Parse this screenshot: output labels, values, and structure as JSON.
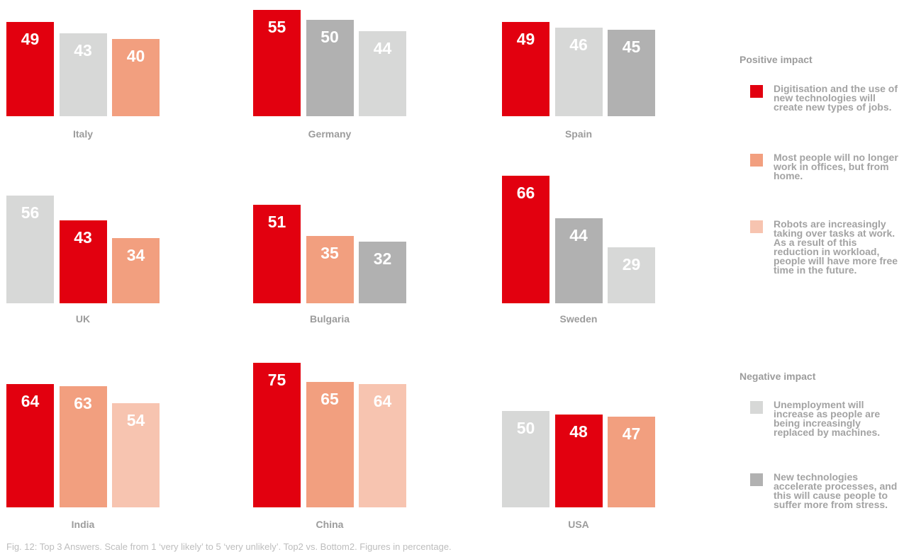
{
  "chart_data": {
    "type": "bar",
    "panels": [
      {
        "title": "Italy",
        "bars": [
          {
            "value": 49,
            "color": "#e2000f"
          },
          {
            "value": 43,
            "color": "#d7d8d7"
          },
          {
            "value": 40,
            "color": "#f29f7f"
          }
        ]
      },
      {
        "title": "Germany",
        "bars": [
          {
            "value": 55,
            "color": "#e2000f"
          },
          {
            "value": 50,
            "color": "#b1b1b1"
          },
          {
            "value": 44,
            "color": "#d7d8d7"
          }
        ]
      },
      {
        "title": "Spain",
        "bars": [
          {
            "value": 49,
            "color": "#e2000f"
          },
          {
            "value": 46,
            "color": "#d7d8d7"
          },
          {
            "value": 45,
            "color": "#b1b1b1"
          }
        ]
      },
      {
        "title": "UK",
        "bars": [
          {
            "value": 56,
            "color": "#d7d8d7"
          },
          {
            "value": 43,
            "color": "#e2000f"
          },
          {
            "value": 34,
            "color": "#f29f7f"
          }
        ]
      },
      {
        "title": "Bulgaria",
        "bars": [
          {
            "value": 51,
            "color": "#e2000f"
          },
          {
            "value": 35,
            "color": "#f29f7f"
          },
          {
            "value": 32,
            "color": "#b1b1b1"
          }
        ]
      },
      {
        "title": "Sweden",
        "bars": [
          {
            "value": 66,
            "color": "#e2000f"
          },
          {
            "value": 44,
            "color": "#b1b1b1"
          },
          {
            "value": 29,
            "color": "#d7d8d7"
          }
        ]
      },
      {
        "title": "India",
        "bars": [
          {
            "value": 64,
            "color": "#e2000f"
          },
          {
            "value": 63,
            "color": "#f29f7f"
          },
          {
            "value": 54,
            "color": "#f7c4b0"
          }
        ]
      },
      {
        "title": "China",
        "bars": [
          {
            "value": 75,
            "color": "#e2000f"
          },
          {
            "value": 65,
            "color": "#f29f7f"
          },
          {
            "value": 64,
            "color": "#f7c4b0"
          }
        ]
      },
      {
        "title": "USA",
        "bars": [
          {
            "value": 50,
            "color": "#d7d8d7"
          },
          {
            "value": 48,
            "color": "#e2000f"
          },
          {
            "value": 47,
            "color": "#f29f7f"
          }
        ]
      }
    ],
    "legend": [
      {
        "group": "Positive impact",
        "items": [
          {
            "name": "Digitisation and the use of new technologies will create new types of jobs.",
            "color": "#e2000f"
          },
          {
            "name": "Most people will no longer work in offices, but from home.",
            "color": "#f29f7f"
          },
          {
            "name": "Robots are increasingly taking over tasks at work. As a result of this reduction in workload, people will have more free time in the future.",
            "color": "#f7c4b0"
          }
        ]
      },
      {
        "group": "Negative impact",
        "items": [
          {
            "name": "Unemployment will increase as people are being increasingly replaced by machines.",
            "color": "#d7d8d7"
          },
          {
            "name": "New technologies accelerate processes, and this will cause people to suffer more from stress.",
            "color": "#b1b1b1"
          }
        ]
      }
    ],
    "caption": "Fig. 12: Top 3 Answers. Scale from 1 ‘very likely’ to 5 ‘very unlikely’. Top2 vs. Bottom2. Figures in percentage."
  }
}
